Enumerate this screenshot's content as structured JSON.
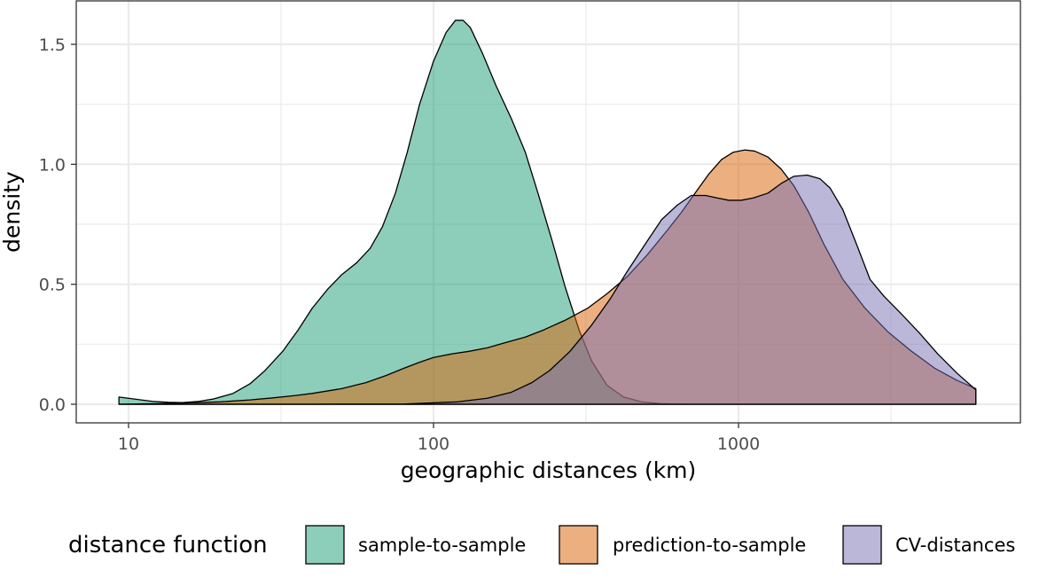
{
  "chart_data": {
    "type": "area",
    "title": "",
    "xlabel": "geographic distances (km)",
    "ylabel": "density",
    "x_scale": "log10",
    "xlim": [
      8,
      7500
    ],
    "ylim": [
      -0.07,
      1.67
    ],
    "x_ticks": [
      10,
      100,
      1000
    ],
    "x_tick_labels": [
      "10",
      "100",
      "1000"
    ],
    "y_ticks": [
      0.0,
      0.5,
      1.0,
      1.5
    ],
    "y_tick_labels": [
      "0.0",
      "0.5",
      "1.0",
      "1.5"
    ],
    "grid": true,
    "legend": {
      "title": "distance function",
      "position": "bottom"
    },
    "series": [
      {
        "name": "sample-to-sample",
        "color": "#1b9e77",
        "points": [
          [
            9.3,
            0.03
          ],
          [
            10,
            0.025
          ],
          [
            11,
            0.018
          ],
          [
            12,
            0.012
          ],
          [
            13.5,
            0.008
          ],
          [
            15,
            0.007
          ],
          [
            17,
            0.012
          ],
          [
            19,
            0.022
          ],
          [
            22,
            0.045
          ],
          [
            25,
            0.085
          ],
          [
            28,
            0.14
          ],
          [
            32,
            0.22
          ],
          [
            36,
            0.31
          ],
          [
            40,
            0.4
          ],
          [
            45,
            0.48
          ],
          [
            50,
            0.54
          ],
          [
            56,
            0.59
          ],
          [
            62,
            0.65
          ],
          [
            68,
            0.74
          ],
          [
            75,
            0.88
          ],
          [
            82,
            1.05
          ],
          [
            90,
            1.25
          ],
          [
            100,
            1.43
          ],
          [
            110,
            1.55
          ],
          [
            118,
            1.6
          ],
          [
            125,
            1.6
          ],
          [
            132,
            1.57
          ],
          [
            145,
            1.46
          ],
          [
            160,
            1.33
          ],
          [
            180,
            1.19
          ],
          [
            200,
            1.05
          ],
          [
            220,
            0.88
          ],
          [
            245,
            0.68
          ],
          [
            270,
            0.49
          ],
          [
            300,
            0.31
          ],
          [
            330,
            0.18
          ],
          [
            370,
            0.08
          ],
          [
            420,
            0.03
          ],
          [
            480,
            0.01
          ],
          [
            560,
            0.002
          ],
          [
            700,
            0.0
          ],
          [
            6000,
            0.0
          ]
        ]
      },
      {
        "name": "prediction-to-sample",
        "color": "#d95f02",
        "points": [
          [
            9.3,
            0.0
          ],
          [
            12,
            0.002
          ],
          [
            15,
            0.005
          ],
          [
            20,
            0.01
          ],
          [
            25,
            0.018
          ],
          [
            30,
            0.027
          ],
          [
            35,
            0.036
          ],
          [
            40,
            0.045
          ],
          [
            50,
            0.065
          ],
          [
            60,
            0.09
          ],
          [
            70,
            0.12
          ],
          [
            80,
            0.15
          ],
          [
            90,
            0.175
          ],
          [
            100,
            0.195
          ],
          [
            115,
            0.21
          ],
          [
            130,
            0.22
          ],
          [
            150,
            0.235
          ],
          [
            170,
            0.255
          ],
          [
            200,
            0.28
          ],
          [
            230,
            0.31
          ],
          [
            270,
            0.35
          ],
          [
            320,
            0.4
          ],
          [
            370,
            0.46
          ],
          [
            430,
            0.53
          ],
          [
            500,
            0.62
          ],
          [
            580,
            0.72
          ],
          [
            650,
            0.8
          ],
          [
            730,
            0.89
          ],
          [
            800,
            0.96
          ],
          [
            880,
            1.02
          ],
          [
            960,
            1.05
          ],
          [
            1050,
            1.06
          ],
          [
            1130,
            1.055
          ],
          [
            1250,
            1.03
          ],
          [
            1380,
            0.98
          ],
          [
            1520,
            0.91
          ],
          [
            1700,
            0.8
          ],
          [
            1900,
            0.67
          ],
          [
            2200,
            0.52
          ],
          [
            2600,
            0.4
          ],
          [
            3100,
            0.3
          ],
          [
            3700,
            0.22
          ],
          [
            4400,
            0.15
          ],
          [
            5200,
            0.1
          ],
          [
            6000,
            0.065
          ]
        ]
      },
      {
        "name": "CV-distances",
        "color": "#7570b3",
        "points": [
          [
            9.3,
            0.0
          ],
          [
            40,
            0.0
          ],
          [
            80,
            0.001
          ],
          [
            120,
            0.01
          ],
          [
            150,
            0.025
          ],
          [
            180,
            0.05
          ],
          [
            210,
            0.09
          ],
          [
            240,
            0.14
          ],
          [
            280,
            0.22
          ],
          [
            330,
            0.33
          ],
          [
            380,
            0.44
          ],
          [
            430,
            0.55
          ],
          [
            490,
            0.66
          ],
          [
            560,
            0.77
          ],
          [
            630,
            0.83
          ],
          [
            700,
            0.87
          ],
          [
            780,
            0.87
          ],
          [
            850,
            0.86
          ],
          [
            930,
            0.85
          ],
          [
            1020,
            0.85
          ],
          [
            1120,
            0.86
          ],
          [
            1250,
            0.88
          ],
          [
            1380,
            0.92
          ],
          [
            1520,
            0.95
          ],
          [
            1680,
            0.955
          ],
          [
            1850,
            0.94
          ],
          [
            2000,
            0.9
          ],
          [
            2200,
            0.81
          ],
          [
            2450,
            0.66
          ],
          [
            2700,
            0.52
          ],
          [
            3000,
            0.45
          ],
          [
            3400,
            0.38
          ],
          [
            3900,
            0.3
          ],
          [
            4500,
            0.21
          ],
          [
            5200,
            0.13
          ],
          [
            6000,
            0.06
          ]
        ]
      }
    ]
  }
}
